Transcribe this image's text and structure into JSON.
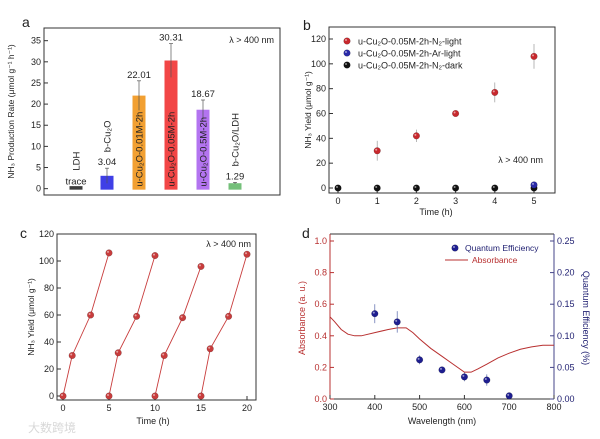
{
  "watermark": "大数跨境",
  "chart_data": [
    {
      "panel": "a",
      "type": "bar",
      "ylabel": "NH₃ Production Rate (μmol g⁻¹ h⁻¹)",
      "annotation": "λ > 400 nm",
      "ylim": [
        -1.5,
        38
      ],
      "yticks": [
        0,
        5,
        10,
        15,
        20,
        25,
        30,
        35
      ],
      "categories": [
        "LDH",
        "b-Cu₂O",
        "u-Cu₂O-0.01M-2h",
        "u-Cu₂O-0.05M-2h",
        "u-Cu₂O-0.5M-2h",
        "b-Cu₂O/LDH"
      ],
      "values": [
        0,
        3.04,
        22.01,
        30.31,
        18.67,
        1.29
      ],
      "value_labels": [
        "trace",
        "3.04",
        "22.01",
        "30.31",
        "18.67",
        "1.29"
      ],
      "errors": [
        0,
        1.8,
        3.5,
        4.0,
        2.3,
        0.2
      ],
      "colors": [
        "#3c3c3c",
        "#3f3fe6",
        "#f2a032",
        "#f24646",
        "#b374f0",
        "#74c07a"
      ]
    },
    {
      "panel": "b",
      "type": "scatter",
      "xlabel": "Time (h)",
      "ylabel": "NH₃ Yield (μmol g⁻¹)",
      "annotation": "λ > 400 nm",
      "xlim": [
        -0.6,
        5.6
      ],
      "ylim": [
        -4,
        126
      ],
      "xticks": [
        0,
        1,
        2,
        3,
        4,
        5
      ],
      "yticks": [
        0,
        20,
        40,
        60,
        80,
        100,
        120
      ],
      "legend": "top-left",
      "series": [
        {
          "name": "u-Cu₂O-0.05M-2h-N₂-light",
          "color": "#c8282d",
          "x": [
            1,
            2,
            3,
            4,
            5
          ],
          "y": [
            30,
            42,
            60,
            77,
            106
          ],
          "err": [
            8,
            5,
            1,
            8,
            10
          ]
        },
        {
          "name": "u-Cu₂O-0.05M-2h-Ar-light",
          "color": "#2a2aa8",
          "x": [
            5
          ],
          "y": [
            2.5
          ],
          "err": [
            0
          ]
        },
        {
          "name": "u-Cu₂O-0.05M-2h-N₂-dark",
          "color": "#111111",
          "x": [
            0,
            1,
            2,
            3,
            4,
            5
          ],
          "y": [
            0,
            0,
            0,
            0,
            0,
            0
          ],
          "err": [
            0,
            0,
            0,
            0,
            0,
            0
          ]
        }
      ]
    },
    {
      "panel": "c",
      "type": "line",
      "xlabel": "Time (h)",
      "ylabel": "NH₃ Yield (μmol g⁻¹)",
      "annotation": "λ > 400 nm",
      "xlim": [
        -1,
        21.5
      ],
      "ylim": [
        -3,
        120
      ],
      "xticks": [
        0,
        5,
        10,
        15,
        20
      ],
      "yticks": [
        0,
        20,
        40,
        60,
        80,
        100,
        120
      ],
      "color": "#c83c3c",
      "cycles": [
        {
          "x": [
            0,
            1,
            3,
            5
          ],
          "y": [
            0,
            30,
            60,
            106
          ]
        },
        {
          "x": [
            5,
            6,
            8,
            10
          ],
          "y": [
            0,
            32,
            59,
            104
          ]
        },
        {
          "x": [
            10,
            11,
            13,
            15
          ],
          "y": [
            0,
            30,
            58,
            96
          ]
        },
        {
          "x": [
            15,
            16,
            18,
            20
          ],
          "y": [
            0,
            35,
            59,
            105
          ]
        }
      ]
    },
    {
      "panel": "d",
      "type": "line+scatter",
      "xlabel": "Wavelength (nm)",
      "ylabel": "Absorbance (a. u.)",
      "y2label": "Quantum Efficiency (%)",
      "xlim": [
        300,
        800
      ],
      "ylim": [
        0,
        1.05
      ],
      "y2lim": [
        0,
        0.2625
      ],
      "xticks": [
        300,
        400,
        500,
        600,
        700,
        800
      ],
      "yticks": [
        "0.0",
        "0.2",
        "0.4",
        "0.6",
        "0.8",
        "1.0"
      ],
      "y2ticks": [
        "0.00",
        "0.05",
        "0.10",
        "0.15",
        "0.20",
        "0.25"
      ],
      "legend": "top-right",
      "absorbance": {
        "name": "Absorbance",
        "color": "#b83030",
        "x": [
          300,
          310,
          325,
          340,
          355,
          370,
          400,
          430,
          450,
          470,
          485,
          500,
          525,
          550,
          575,
          600,
          615,
          630,
          650,
          675,
          700,
          725,
          750,
          775,
          800
        ],
        "y": [
          0.52,
          0.49,
          0.44,
          0.41,
          0.4,
          0.4,
          0.42,
          0.44,
          0.45,
          0.45,
          0.42,
          0.38,
          0.32,
          0.27,
          0.22,
          0.17,
          0.17,
          0.19,
          0.22,
          0.26,
          0.29,
          0.315,
          0.33,
          0.34,
          0.34
        ]
      },
      "quantum_efficiency": {
        "name": "Quantum Efficiency",
        "color": "#1e1e90",
        "x": [
          400,
          450,
          500,
          550,
          600,
          650,
          700
        ],
        "y": [
          0.135,
          0.122,
          0.062,
          0.046,
          0.035,
          0.03,
          0.005
        ],
        "err": [
          0.015,
          0.017,
          0.007,
          0.002,
          0.007,
          0.009,
          0.004
        ]
      }
    }
  ]
}
